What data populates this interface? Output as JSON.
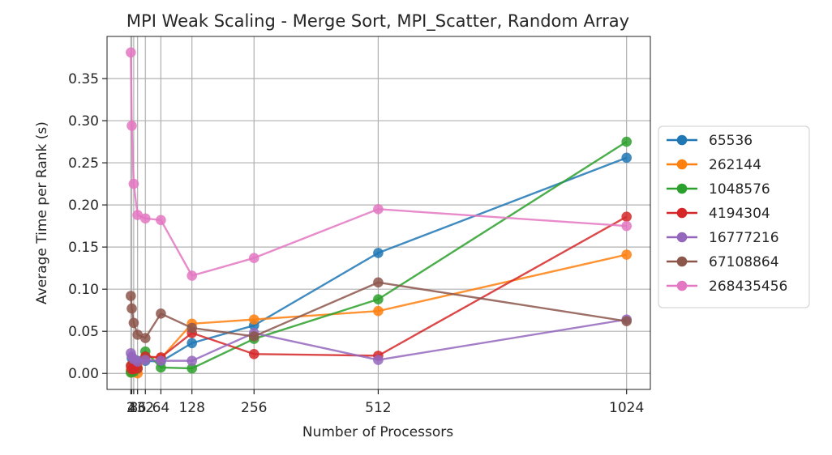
{
  "chart_data": {
    "type": "line",
    "title": "MPI Weak Scaling - Merge Sort, MPI_Scatter, Random Array",
    "xlabel": "Number of Processors",
    "ylabel": "Average Time per Rank (s)",
    "x": [
      2,
      4,
      8,
      16,
      32,
      64,
      128,
      256,
      512,
      1024
    ],
    "x_tick_labels": [
      "2",
      "4",
      "8",
      "16",
      "32",
      "64",
      "128",
      "256",
      "512",
      "1024"
    ],
    "xlim": [
      -47,
      1073
    ],
    "ylim": [
      -0.019,
      0.4
    ],
    "y_ticks": [
      0.0,
      0.05,
      0.1,
      0.15,
      0.2,
      0.25,
      0.3,
      0.35
    ],
    "y_tick_labels": [
      "0.00",
      "0.05",
      "0.10",
      "0.15",
      "0.20",
      "0.25",
      "0.30",
      "0.35"
    ],
    "grid": true,
    "legend_position": "outside-right",
    "series": [
      {
        "name": "65536",
        "color": "#1f77b4",
        "values": [
          0.003,
          0.018,
          0.012,
          0.015,
          0.015,
          0.014,
          0.036,
          0.057,
          0.143,
          0.256
        ]
      },
      {
        "name": "262144",
        "color": "#ff7f0e",
        "values": [
          0.004,
          0.001,
          0.002,
          0.0,
          0.02,
          0.018,
          0.059,
          0.064,
          0.074,
          0.141
        ]
      },
      {
        "name": "1048576",
        "color": "#2ca02c",
        "values": [
          0.001,
          0.01,
          0.002,
          0.006,
          0.026,
          0.007,
          0.006,
          0.041,
          0.088,
          0.275
        ]
      },
      {
        "name": "4194304",
        "color": "#d62728",
        "values": [
          0.009,
          0.005,
          0.005,
          0.006,
          0.02,
          0.019,
          0.048,
          0.023,
          0.021,
          0.186
        ]
      },
      {
        "name": "16777216",
        "color": "#9467bd",
        "values": [
          0.024,
          0.02,
          0.017,
          0.014,
          0.016,
          0.015,
          0.015,
          0.048,
          0.016,
          0.064
        ]
      },
      {
        "name": "67108864",
        "color": "#8c564b",
        "values": [
          0.092,
          0.077,
          0.06,
          0.046,
          0.042,
          0.071,
          0.054,
          0.044,
          0.108,
          0.062
        ]
      },
      {
        "name": "268435456",
        "color": "#e377c2",
        "values": [
          0.381,
          0.294,
          0.225,
          0.188,
          0.184,
          0.182,
          0.116,
          0.137,
          0.195,
          0.175
        ]
      }
    ]
  }
}
